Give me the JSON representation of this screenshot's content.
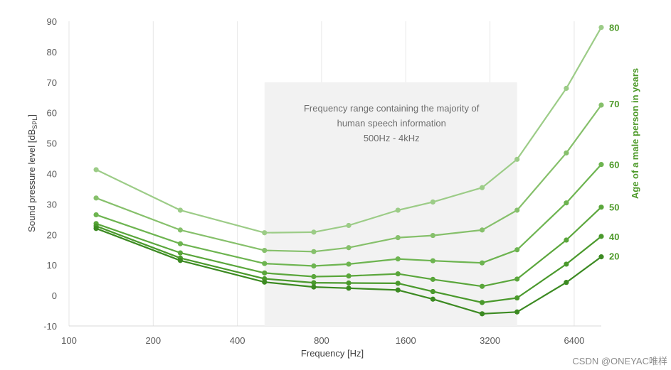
{
  "chart_data": {
    "type": "line",
    "xlabel": "Frequency [Hz]",
    "ylabel_main": "Sound pressure level [dB",
    "ylabel_sub": "SPL",
    "ylabel_end": "]",
    "right_axis_title": "Age of a male person in years",
    "x_scale": "log2",
    "x_ticks": [
      100,
      200,
      400,
      800,
      1600,
      3200,
      6400
    ],
    "x_range": [
      100,
      8000
    ],
    "ylim": [
      -10,
      90
    ],
    "y_ticks": [
      -10,
      0,
      10,
      20,
      30,
      40,
      50,
      60,
      70,
      80,
      90
    ],
    "grid": "vertical",
    "highlight_band": {
      "x_start": 500,
      "x_end": 4000,
      "y_top": 70,
      "text_lines": [
        "Frequency range containing the majority of",
        "human speech information",
        "500Hz - 4kHz"
      ]
    },
    "x": [
      125,
      250,
      500,
      750,
      1000,
      1500,
      2000,
      3000,
      4000,
      6000,
      8000
    ],
    "series": [
      {
        "name": "80",
        "color": "#9ccc87",
        "values": [
          41.3,
          28,
          20.6,
          20.8,
          23,
          28,
          30.7,
          35.4,
          44.7,
          68,
          88
        ]
      },
      {
        "name": "70",
        "color": "#86c06b",
        "values": [
          32,
          21.5,
          14.8,
          14.4,
          15.7,
          19,
          19.7,
          21.5,
          28,
          46.8,
          62.5
        ]
      },
      {
        "name": "60",
        "color": "#6db450",
        "values": [
          26.5,
          17,
          10.5,
          9.7,
          10.3,
          12,
          11.4,
          10.7,
          15,
          30.4,
          43
        ]
      },
      {
        "name": "50",
        "color": "#5aa63b",
        "values": [
          23.6,
          14,
          7.4,
          6.2,
          6.4,
          7.1,
          5.3,
          3,
          5.4,
          18.2,
          29
        ]
      },
      {
        "name": "40",
        "color": "#4a992c",
        "values": [
          22.8,
          12.3,
          5.5,
          4.2,
          4.1,
          4,
          1.3,
          -2.3,
          -0.8,
          10.3,
          19.4
        ]
      },
      {
        "name": "20",
        "color": "#3c8a22",
        "values": [
          22,
          11.5,
          4.4,
          2.8,
          2.4,
          1.8,
          -1.2,
          -6,
          -5.4,
          4.3,
          12.7
        ]
      }
    ],
    "age_labels": [
      {
        "text": "80",
        "y": 88
      },
      {
        "text": "70",
        "y": 63
      },
      {
        "text": "60",
        "y": 43
      },
      {
        "text": "50",
        "y": 29
      },
      {
        "text": "40",
        "y": 19.4
      },
      {
        "text": "20",
        "y": 13
      }
    ]
  },
  "watermark": "CSDN @ONEYAC唯样"
}
